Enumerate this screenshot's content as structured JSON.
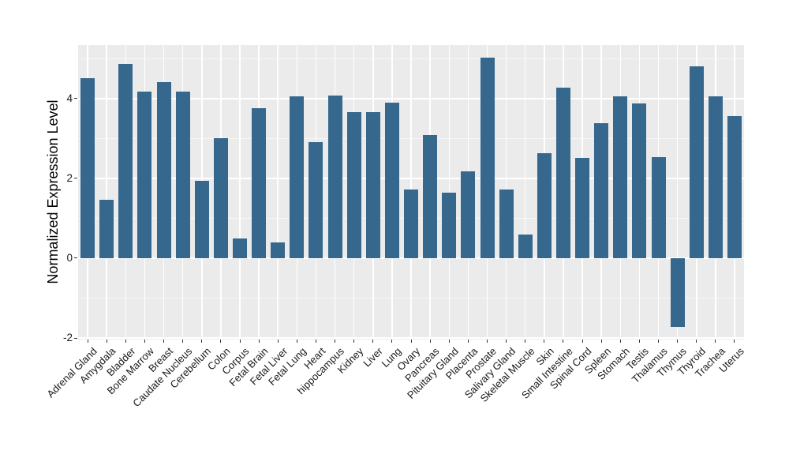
{
  "chart_data": {
    "type": "bar",
    "title": "",
    "xlabel": "",
    "ylabel": "Normalized Expression Level",
    "categories": [
      "Adrenal Gland",
      "Amygdala",
      "Bladder",
      "Bone Marrow",
      "Breast",
      "Caudate Nucleus",
      "Cerebellum",
      "Colon",
      "Corpus",
      "Fetal Brain",
      "Fetal Liver",
      "Fetal Lung",
      "Heart",
      "hippocampus",
      "Kidney",
      "Liver",
      "Lung",
      "Ovary",
      "Pancreas",
      "Pituitary Gland",
      "Placenta",
      "Prostate",
      "Salivary Gland",
      "Skeletal Muscle",
      "Skin",
      "Small Intestine",
      "Spinal Cord",
      "Spleen",
      "Stomach",
      "Testis",
      "Thalamus",
      "Thymus",
      "Thyroid",
      "Trachea",
      "Uterus"
    ],
    "values": [
      4.51,
      1.46,
      4.87,
      4.17,
      4.42,
      4.18,
      1.93,
      3.01,
      0.5,
      3.76,
      0.4,
      4.06,
      2.91,
      4.07,
      3.65,
      3.65,
      3.9,
      1.72,
      3.09,
      1.64,
      2.18,
      5.02,
      1.72,
      0.59,
      2.64,
      4.28,
      2.51,
      3.39,
      4.06,
      3.88,
      2.53,
      -1.72,
      4.81,
      4.06,
      3.57
    ],
    "ylim": [
      -2.04,
      5.34
    ],
    "yticks": [
      -2,
      0,
      2,
      4
    ],
    "ytick_labels": [
      "-2",
      "0",
      "2",
      "4"
    ],
    "yticks_minor": [
      -1,
      1,
      3,
      5
    ],
    "grid": "on",
    "legend": "none",
    "bar_color": "#36678D",
    "panel_bg": "#EBEBEB",
    "figure_bg": "#FFFFFF",
    "gridline_major_color": "#FFFFFF",
    "gridline_minor_color": "#F7F7F7",
    "tick_label_color": "#1A1A1A",
    "axis_title_color": "#000000"
  }
}
